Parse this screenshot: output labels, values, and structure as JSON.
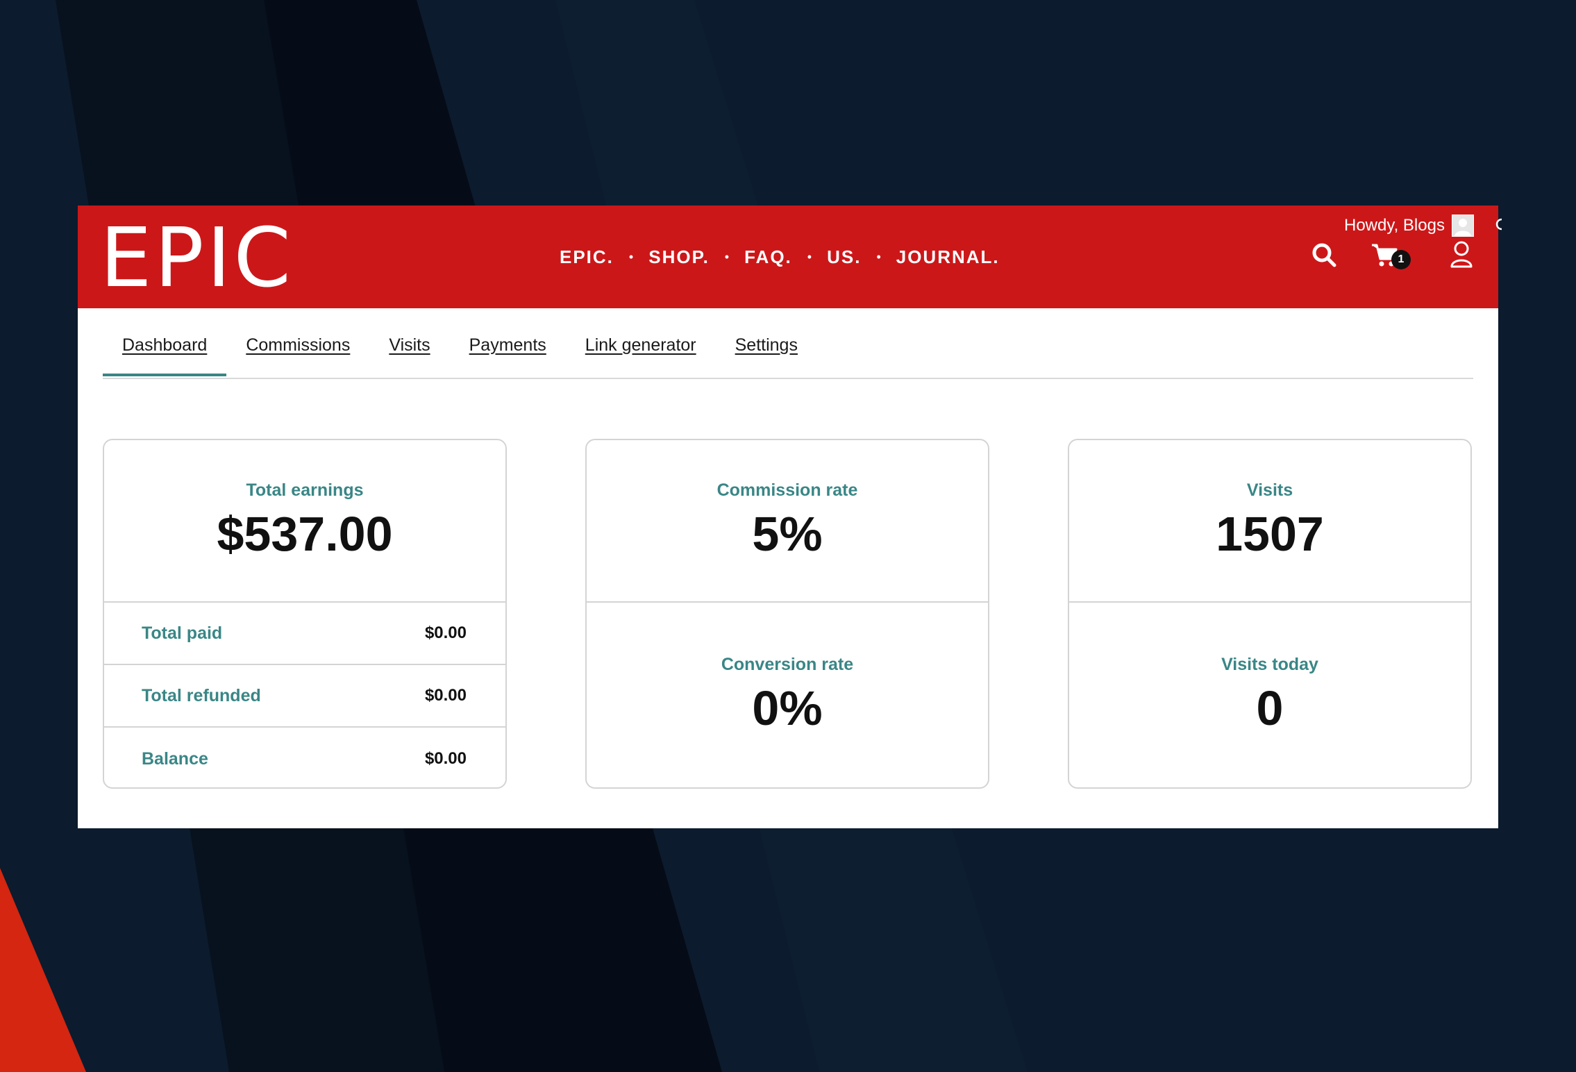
{
  "brand": {
    "logo_text": "EPIC",
    "accent": "#cc1719",
    "teal": "#3a8686"
  },
  "header": {
    "nav": [
      "EPIC.",
      "SHOP.",
      "FAQ.",
      "US.",
      "JOURNAL."
    ],
    "greeting": "Howdy, Blogs",
    "cart_count": "1",
    "icons": [
      "search-icon",
      "cart-icon",
      "user-icon",
      "avatar"
    ]
  },
  "tabs": [
    {
      "label": "Dashboard",
      "active": true
    },
    {
      "label": "Commissions",
      "active": false
    },
    {
      "label": "Visits",
      "active": false
    },
    {
      "label": "Payments",
      "active": false
    },
    {
      "label": "Link generator",
      "active": false
    },
    {
      "label": "Settings",
      "active": false
    }
  ],
  "cards": {
    "earnings": {
      "label": "Total earnings",
      "value": "$537.00",
      "rows": [
        {
          "label": "Total paid",
          "value": "$0.00"
        },
        {
          "label": "Total refunded",
          "value": "$0.00"
        },
        {
          "label": "Balance",
          "value": "$0.00"
        }
      ]
    },
    "rates": {
      "commission_label": "Commission rate",
      "commission_value": "5%",
      "conversion_label": "Conversion rate",
      "conversion_value": "0%"
    },
    "visits": {
      "visits_label": "Visits",
      "visits_value": "1507",
      "today_label": "Visits today",
      "today_value": "0"
    }
  }
}
